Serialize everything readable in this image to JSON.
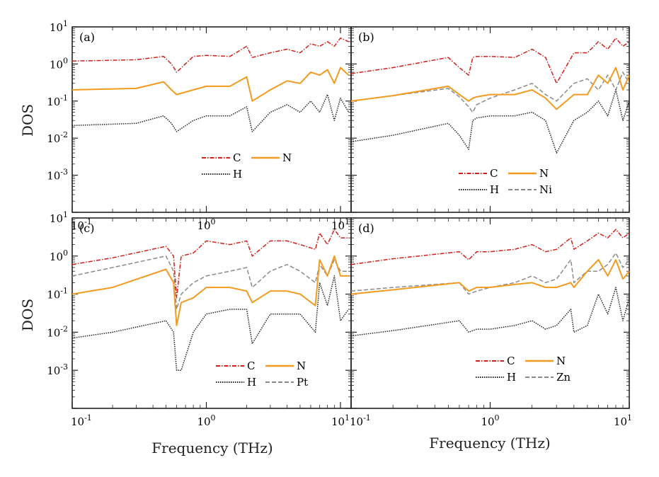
{
  "figure": {
    "ylabel": "DOS",
    "xlabel": "Frequency (THz)",
    "colors": {
      "C": "#d2201a",
      "N": "#f39a20",
      "H": "#222222",
      "X": "#8a8a8a",
      "axis": "#222222"
    }
  },
  "chart_data": [
    {
      "type": "line",
      "panel": "(a)",
      "xscale": "log",
      "yscale": "log",
      "xlim": [
        0.1,
        12
      ],
      "ylim": [
        0.0001,
        10
      ],
      "xticklabels": [
        "10^-1",
        "10^0",
        "10^1"
      ],
      "yticklabels": [
        "10^-3",
        "10^-2",
        "10^-1",
        "10^0",
        "10^1"
      ],
      "legend": [
        [
          "C",
          "N"
        ],
        [
          "H"
        ]
      ],
      "series": [
        {
          "name": "C",
          "style": "dash-dot",
          "x": [
            0.1,
            0.3,
            0.48,
            0.55,
            0.6,
            0.8,
            1.0,
            1.5,
            2.0,
            2.2,
            3.0,
            4.0,
            5.0,
            6.0,
            7.0,
            8.0,
            9.0,
            10.0,
            11.5
          ],
          "y": [
            1.2,
            1.3,
            1.6,
            1.0,
            0.6,
            1.6,
            1.7,
            1.6,
            3.0,
            1.5,
            2.0,
            2.5,
            2.0,
            3.5,
            3.0,
            4.0,
            3.0,
            5.0,
            4.0
          ]
        },
        {
          "name": "N",
          "style": "solid",
          "x": [
            0.1,
            0.3,
            0.48,
            0.55,
            0.6,
            0.8,
            1.0,
            1.5,
            2.0,
            2.2,
            3.0,
            4.0,
            5.0,
            6.0,
            7.0,
            8.0,
            9.0,
            10.0,
            11.5
          ],
          "y": [
            0.2,
            0.22,
            0.33,
            0.2,
            0.15,
            0.2,
            0.25,
            0.25,
            0.45,
            0.1,
            0.2,
            0.35,
            0.3,
            0.6,
            0.5,
            0.7,
            0.3,
            0.8,
            0.5
          ]
        },
        {
          "name": "H",
          "style": "dotted",
          "x": [
            0.1,
            0.3,
            0.48,
            0.55,
            0.6,
            0.8,
            1.0,
            1.5,
            2.0,
            2.2,
            3.0,
            4.0,
            5.0,
            6.0,
            7.0,
            8.0,
            9.0,
            10.0,
            11.5
          ],
          "y": [
            0.022,
            0.025,
            0.04,
            0.025,
            0.015,
            0.03,
            0.04,
            0.04,
            0.07,
            0.015,
            0.05,
            0.08,
            0.05,
            0.1,
            0.05,
            0.15,
            0.03,
            0.12,
            0.05
          ]
        }
      ]
    },
    {
      "type": "line",
      "panel": "(b)",
      "xscale": "log",
      "yscale": "log",
      "xlim": [
        0.1,
        10
      ],
      "ylim": [
        0.0001,
        10
      ],
      "xticklabels": [],
      "yticklabels": [],
      "legend": [
        [
          "C",
          "N"
        ],
        [
          "H",
          "Ni"
        ]
      ],
      "series": [
        {
          "name": "C",
          "style": "dash-dot",
          "x": [
            0.1,
            0.2,
            0.5,
            0.6,
            0.7,
            0.75,
            0.8,
            1.0,
            1.5,
            2.0,
            2.5,
            3.0,
            4.0,
            5.0,
            6.0,
            7.0,
            8.0,
            9.0,
            10.0
          ],
          "y": [
            0.55,
            0.8,
            1.5,
            0.8,
            0.5,
            1.5,
            1.6,
            1.6,
            1.5,
            2.5,
            1.5,
            0.3,
            2.0,
            2.0,
            4.0,
            2.5,
            5.0,
            3.0,
            4.0
          ]
        },
        {
          "name": "N",
          "style": "solid",
          "x": [
            0.1,
            0.2,
            0.5,
            0.6,
            0.7,
            0.75,
            0.8,
            1.0,
            1.5,
            2.0,
            2.5,
            3.0,
            4.0,
            5.0,
            6.0,
            7.0,
            8.0,
            9.0,
            10.0
          ],
          "y": [
            0.1,
            0.14,
            0.25,
            0.15,
            0.1,
            0.12,
            0.13,
            0.15,
            0.15,
            0.2,
            0.12,
            0.06,
            0.15,
            0.15,
            0.5,
            0.3,
            0.8,
            0.2,
            0.5
          ]
        },
        {
          "name": "H",
          "style": "dotted",
          "x": [
            0.1,
            0.2,
            0.5,
            0.6,
            0.7,
            0.75,
            0.8,
            1.0,
            1.5,
            2.0,
            2.5,
            3.0,
            4.0,
            5.0,
            6.0,
            7.0,
            8.0,
            9.0,
            10.0
          ],
          "y": [
            0.008,
            0.012,
            0.025,
            0.012,
            0.005,
            0.03,
            0.035,
            0.04,
            0.04,
            0.05,
            0.03,
            0.004,
            0.03,
            0.05,
            0.1,
            0.04,
            0.2,
            0.03,
            0.1
          ]
        },
        {
          "name": "Ni",
          "style": "dashed",
          "x": [
            0.1,
            0.2,
            0.5,
            0.6,
            0.7,
            0.75,
            0.8,
            1.0,
            1.5,
            2.0,
            2.5,
            3.0,
            4.0,
            5.0,
            6.0,
            7.0,
            8.0,
            9.0,
            10.0
          ],
          "y": [
            0.1,
            0.14,
            0.22,
            0.13,
            0.07,
            0.05,
            0.08,
            0.12,
            0.2,
            0.3,
            0.15,
            0.1,
            0.3,
            0.4,
            0.2,
            0.5,
            0.2,
            0.6,
            0.3
          ]
        }
      ]
    },
    {
      "type": "line",
      "panel": "(c)",
      "xscale": "log",
      "yscale": "log",
      "xlim": [
        0.1,
        12
      ],
      "ylim": [
        0.0001,
        10
      ],
      "xticklabels": [
        "10^-1",
        "10^0",
        "10^1"
      ],
      "yticklabels": [
        "10^-3",
        "10^-2",
        "10^-1",
        "10^0",
        "10^1"
      ],
      "legend": [
        [
          "C",
          "N"
        ],
        [
          "H",
          "Pt"
        ]
      ],
      "series": [
        {
          "name": "C",
          "style": "dash-dot",
          "x": [
            0.1,
            0.2,
            0.5,
            0.57,
            0.6,
            0.65,
            0.8,
            1.0,
            1.5,
            2.0,
            2.2,
            3.0,
            4.0,
            5.0,
            6.5,
            7.0,
            8.0,
            9.0,
            10.0,
            11.5
          ],
          "y": [
            0.6,
            0.9,
            1.8,
            1.0,
            0.08,
            1.0,
            1.2,
            2.5,
            2.0,
            2.5,
            1.0,
            2.5,
            2.5,
            2.0,
            1.5,
            4.0,
            2.0,
            5.0,
            3.0,
            3.0
          ]
        },
        {
          "name": "N",
          "style": "solid",
          "x": [
            0.1,
            0.2,
            0.5,
            0.57,
            0.6,
            0.65,
            0.8,
            1.0,
            1.5,
            2.0,
            2.2,
            3.0,
            4.0,
            5.0,
            6.5,
            7.0,
            8.0,
            9.0,
            10.0,
            11.5
          ],
          "y": [
            0.1,
            0.15,
            0.45,
            0.2,
            0.015,
            0.06,
            0.08,
            0.15,
            0.15,
            0.12,
            0.06,
            0.12,
            0.12,
            0.1,
            0.05,
            0.8,
            0.3,
            1.0,
            0.3,
            0.3
          ]
        },
        {
          "name": "H",
          "style": "dotted",
          "x": [
            0.1,
            0.2,
            0.5,
            0.57,
            0.6,
            0.65,
            0.8,
            1.0,
            1.5,
            2.0,
            2.2,
            3.0,
            4.0,
            5.0,
            6.5,
            7.0,
            8.0,
            9.0,
            10.0,
            11.5
          ],
          "y": [
            0.007,
            0.01,
            0.02,
            0.01,
            0.001,
            0.001,
            0.01,
            0.03,
            0.04,
            0.04,
            0.005,
            0.03,
            0.03,
            0.03,
            0.01,
            0.2,
            0.05,
            0.3,
            0.02,
            0.04
          ]
        },
        {
          "name": "Pt",
          "style": "dashed",
          "x": [
            0.1,
            0.2,
            0.5,
            0.57,
            0.6,
            0.65,
            0.8,
            1.0,
            1.5,
            2.0,
            2.2,
            3.0,
            4.0,
            5.0,
            6.5,
            7.0,
            8.0,
            9.0,
            10.0,
            11.5
          ],
          "y": [
            0.3,
            0.5,
            1.0,
            0.4,
            0.04,
            0.1,
            0.2,
            0.3,
            0.4,
            0.5,
            0.15,
            0.4,
            0.6,
            0.4,
            0.2,
            0.6,
            0.3,
            0.8,
            0.4,
            0.4
          ]
        }
      ]
    },
    {
      "type": "line",
      "panel": "(d)",
      "xscale": "log",
      "yscale": "log",
      "xlim": [
        0.1,
        10
      ],
      "ylim": [
        0.0001,
        10
      ],
      "xticklabels": [
        "10^-1",
        "10^0",
        "10^1"
      ],
      "yticklabels": [],
      "legend": [
        [
          "C",
          "N"
        ],
        [
          "H",
          "Zn"
        ]
      ],
      "series": [
        {
          "name": "C",
          "style": "dash-dot",
          "x": [
            0.1,
            0.2,
            0.6,
            0.7,
            0.8,
            1.0,
            1.5,
            2.0,
            2.5,
            3.0,
            3.8,
            4.0,
            5.0,
            6.0,
            7.0,
            8.0,
            9.0,
            10.0
          ],
          "y": [
            0.6,
            0.85,
            1.3,
            0.8,
            1.3,
            1.3,
            1.5,
            2.0,
            1.3,
            1.5,
            3.0,
            1.5,
            2.5,
            4.0,
            3.0,
            5.0,
            3.0,
            4.0
          ]
        },
        {
          "name": "N",
          "style": "solid",
          "x": [
            0.1,
            0.2,
            0.6,
            0.7,
            0.8,
            1.0,
            1.5,
            2.0,
            2.5,
            3.0,
            3.8,
            4.0,
            5.0,
            6.0,
            7.0,
            8.0,
            9.0,
            10.0
          ],
          "y": [
            0.1,
            0.13,
            0.2,
            0.12,
            0.15,
            0.15,
            0.18,
            0.2,
            0.15,
            0.15,
            0.2,
            0.15,
            0.4,
            0.8,
            0.3,
            0.8,
            0.25,
            0.4
          ]
        },
        {
          "name": "H",
          "style": "dotted",
          "x": [
            0.1,
            0.2,
            0.6,
            0.7,
            0.8,
            1.0,
            1.5,
            2.0,
            2.5,
            3.0,
            3.8,
            4.0,
            5.0,
            6.0,
            7.0,
            8.0,
            9.0,
            10.0
          ],
          "y": [
            0.008,
            0.011,
            0.02,
            0.01,
            0.012,
            0.012,
            0.015,
            0.02,
            0.012,
            0.015,
            0.04,
            0.01,
            0.015,
            0.1,
            0.03,
            0.15,
            0.02,
            0.08
          ]
        },
        {
          "name": "Zn",
          "style": "dashed",
          "x": [
            0.1,
            0.2,
            0.6,
            0.7,
            0.8,
            1.0,
            1.5,
            2.0,
            2.5,
            3.0,
            3.8,
            4.0,
            5.0,
            6.0,
            7.0,
            8.0,
            9.0,
            10.0
          ],
          "y": [
            0.12,
            0.15,
            0.2,
            0.1,
            0.12,
            0.15,
            0.2,
            0.3,
            0.2,
            0.25,
            0.8,
            0.2,
            0.4,
            0.4,
            0.6,
            1.2,
            0.5,
            0.8
          ]
        }
      ]
    }
  ]
}
